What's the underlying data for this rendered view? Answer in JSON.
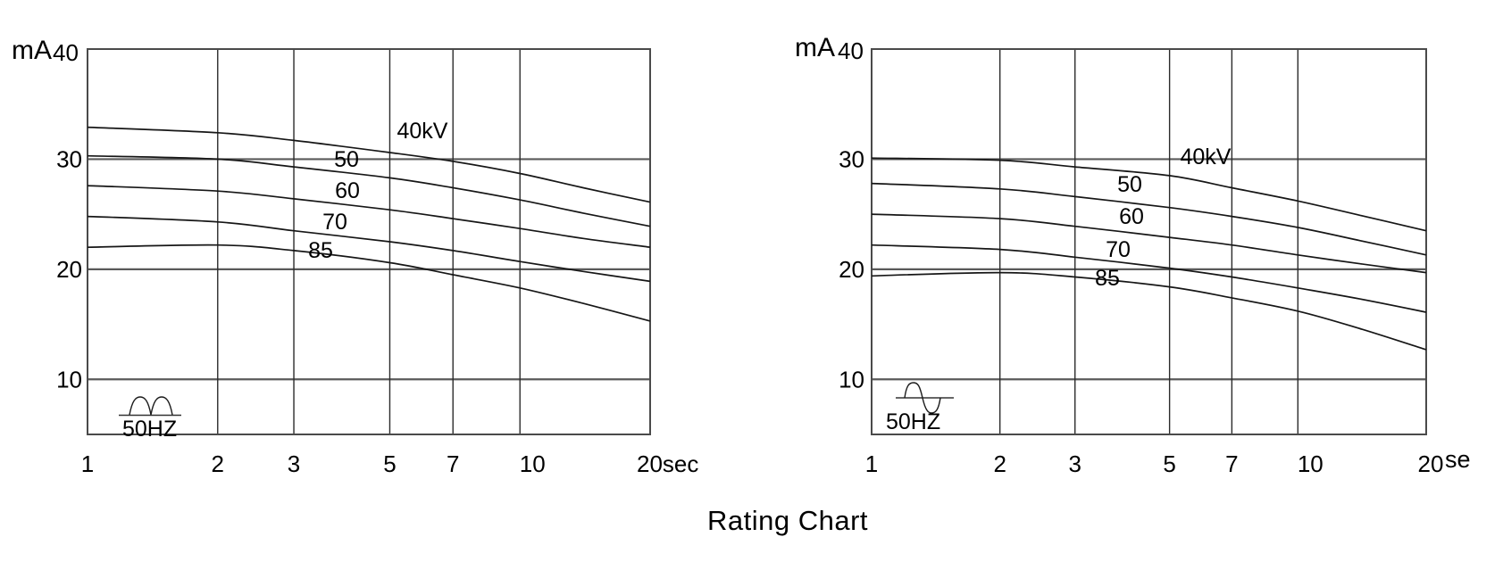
{
  "caption": "Rating Chart",
  "chart_data": [
    {
      "type": "line",
      "position": "left",
      "title": "",
      "ylabel": "mA",
      "xlabel": "sec",
      "x_scale": "log",
      "ylim": [
        5,
        40
      ],
      "yticks": [
        10,
        20,
        30,
        40
      ],
      "ytick_labels": [
        "10",
        "20",
        "30",
        "40"
      ],
      "y_unit_label": "mA",
      "y_top_tick_label": "40",
      "xticks": [
        1,
        2,
        3,
        5,
        7,
        10,
        20
      ],
      "xtick_labels": [
        "1",
        "2",
        "3",
        "5",
        "7",
        "10",
        "20sec"
      ],
      "x_unit": "sec",
      "grid": true,
      "legend_position": "on-curve",
      "waveform": "full-wave-rectified",
      "frequency_label": "50HZ",
      "x": [
        1,
        2,
        3,
        5,
        7,
        10,
        14,
        20
      ],
      "series": [
        {
          "name": "40kV",
          "values": [
            32.9,
            32.4,
            31.7,
            30.6,
            29.8,
            28.7,
            27.4,
            26.1
          ]
        },
        {
          "name": "50",
          "values": [
            30.3,
            30.0,
            29.3,
            28.3,
            27.4,
            26.3,
            25.1,
            23.9
          ]
        },
        {
          "name": "60",
          "values": [
            27.6,
            27.1,
            26.4,
            25.4,
            24.6,
            23.7,
            22.8,
            22.0
          ]
        },
        {
          "name": "70",
          "values": [
            24.8,
            24.3,
            23.5,
            22.5,
            21.7,
            20.7,
            19.8,
            18.9
          ]
        },
        {
          "name": "85",
          "values": [
            22.0,
            22.2,
            21.7,
            20.6,
            19.5,
            18.3,
            16.9,
            15.3
          ]
        }
      ]
    },
    {
      "type": "line",
      "position": "right",
      "title": "",
      "ylabel": "mA",
      "xlabel": "se",
      "x_scale": "log",
      "ylim": [
        5,
        40
      ],
      "yticks": [
        10,
        20,
        30,
        40
      ],
      "ytick_labels": [
        "10",
        "20",
        "30",
        "40"
      ],
      "y_unit_label": "mA",
      "y_top_tick_label": "40",
      "xticks": [
        1,
        2,
        3,
        5,
        7,
        10,
        20
      ],
      "xtick_labels": [
        "1",
        "2",
        "3",
        "5",
        "7",
        "10",
        "20"
      ],
      "x_unit": "se",
      "grid": true,
      "legend_position": "on-curve",
      "waveform": "sine",
      "frequency_label": "50HZ",
      "x": [
        1,
        2,
        3,
        5,
        7,
        10,
        14,
        20
      ],
      "series": [
        {
          "name": "40kV",
          "values": [
            30.1,
            29.9,
            29.3,
            28.5,
            27.4,
            26.2,
            24.9,
            23.5
          ]
        },
        {
          "name": "50",
          "values": [
            27.8,
            27.3,
            26.6,
            25.6,
            24.8,
            23.8,
            22.6,
            21.3
          ]
        },
        {
          "name": "60",
          "values": [
            25.0,
            24.6,
            23.9,
            22.9,
            22.2,
            21.3,
            20.5,
            19.7
          ]
        },
        {
          "name": "70",
          "values": [
            22.2,
            21.8,
            21.1,
            20.1,
            19.3,
            18.3,
            17.3,
            16.1
          ]
        },
        {
          "name": "85",
          "values": [
            19.4,
            19.7,
            19.3,
            18.4,
            17.4,
            16.2,
            14.6,
            12.7
          ]
        }
      ]
    }
  ]
}
